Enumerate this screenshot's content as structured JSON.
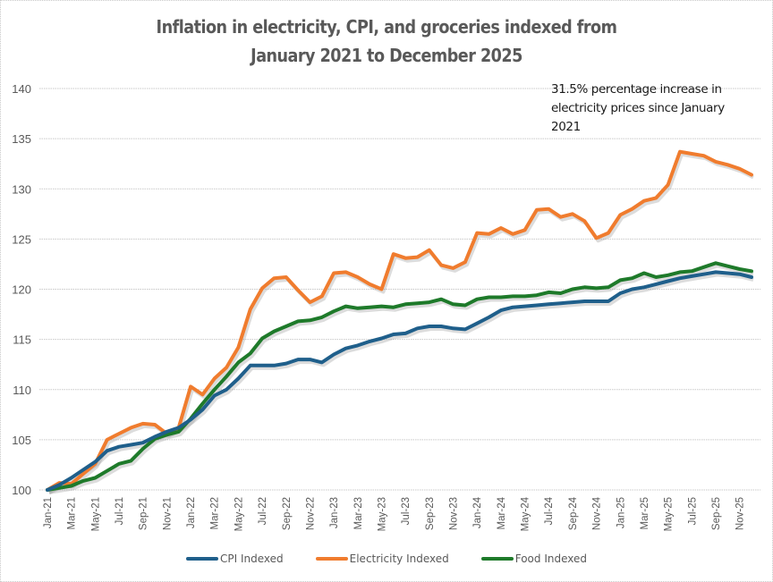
{
  "chart_data": {
    "type": "line",
    "title": "Inflation in electricity, CPI, and groceries indexed from January 2021 to December 2025",
    "title_lines": [
      "Inflation in electricity, CPI, and groceries indexed from",
      "January 2021 to December 2025"
    ],
    "annotation": "31.5% percentage increase in electricity prices since January 2021",
    "annotation_lines": [
      "31.5% percentage increase in",
      "electricity prices since January",
      "2021"
    ],
    "xlabel": "",
    "ylabel": "",
    "ylim": [
      100,
      140
    ],
    "yticks": [
      100,
      105,
      110,
      115,
      120,
      125,
      130,
      135,
      140
    ],
    "grid": true,
    "legend_position": "bottom",
    "x": [
      "Jan-21",
      "Feb-21",
      "Mar-21",
      "Apr-21",
      "May-21",
      "Jun-21",
      "Jul-21",
      "Aug-21",
      "Sep-21",
      "Oct-21",
      "Nov-21",
      "Dec-21",
      "Jan-22",
      "Feb-22",
      "Mar-22",
      "Apr-22",
      "May-22",
      "Jun-22",
      "Jul-22",
      "Aug-22",
      "Sep-22",
      "Oct-22",
      "Nov-22",
      "Dec-22",
      "Jan-23",
      "Feb-23",
      "Mar-23",
      "Apr-23",
      "May-23",
      "Jun-23",
      "Jul-23",
      "Aug-23",
      "Sep-23",
      "Oct-23",
      "Nov-23",
      "Dec-23",
      "Jan-24",
      "Feb-24",
      "Mar-24",
      "Apr-24",
      "May-24",
      "Jun-24",
      "Jul-24",
      "Aug-24",
      "Sep-24",
      "Oct-24",
      "Nov-24",
      "Dec-24",
      "Jan-25",
      "Feb-25",
      "Mar-25",
      "Apr-25",
      "May-25",
      "Jun-25",
      "Jul-25",
      "Aug-25",
      "Sep-25",
      "Oct-25",
      "Nov-25",
      "Dec-25"
    ],
    "xtick_labels": [
      "Jan-21",
      "Mar-21",
      "May-21",
      "Jul-21",
      "Sep-21",
      "Nov-21",
      "Jan-22",
      "Mar-22",
      "May-22",
      "Jul-22",
      "Sep-22",
      "Nov-22",
      "Jan-23",
      "Mar-23",
      "May-23",
      "Jul-23",
      "Sep-23",
      "Nov-23",
      "Jan-24",
      "Mar-24",
      "May-24",
      "Jul-24",
      "Sep-24",
      "Nov-24",
      "Jan-25",
      "Mar-25",
      "May-25",
      "Jul-25",
      "Sep-25",
      "Nov-25"
    ],
    "series": [
      {
        "name": "CPI Indexed",
        "color": "#1f5f8b",
        "values": [
          100,
          100.5,
          101.2,
          102.0,
          102.8,
          103.9,
          104.3,
          104.5,
          104.7,
          105.3,
          105.8,
          106.2,
          107.0,
          108.0,
          109.4,
          110.0,
          111.1,
          112.4,
          112.4,
          112.4,
          112.6,
          113.0,
          113.0,
          112.7,
          113.5,
          114.1,
          114.4,
          114.8,
          115.1,
          115.5,
          115.6,
          116.1,
          116.3,
          116.3,
          116.1,
          116.0,
          116.6,
          117.2,
          117.9,
          118.2,
          118.3,
          118.4,
          118.5,
          118.6,
          118.7,
          118.8,
          118.8,
          118.8,
          119.6,
          120.0,
          120.2,
          120.5,
          120.8,
          121.1,
          121.3,
          121.5,
          121.7,
          121.6,
          121.5,
          121.2
        ]
      },
      {
        "name": "Electricity Indexed",
        "color": "#f07c2e",
        "values": [
          100,
          100.7,
          100.6,
          101.6,
          102.6,
          105.0,
          105.6,
          106.2,
          106.6,
          106.5,
          105.6,
          106.2,
          110.3,
          109.5,
          111.1,
          112.2,
          114.2,
          118.0,
          120.1,
          121.1,
          121.2,
          119.9,
          118.7,
          119.3,
          121.6,
          121.7,
          121.2,
          120.5,
          120.0,
          123.5,
          123.1,
          123.2,
          123.9,
          122.4,
          122.1,
          122.7,
          125.6,
          125.5,
          126.1,
          125.5,
          125.9,
          127.9,
          128.0,
          127.2,
          127.5,
          126.8,
          125.1,
          125.6,
          127.4,
          128.0,
          128.8,
          129.1,
          130.4,
          133.7,
          133.5,
          133.3,
          132.7,
          132.4,
          132.0,
          131.4
        ]
      },
      {
        "name": "Food Indexed",
        "color": "#1e7a2a",
        "values": [
          100,
          100.2,
          100.4,
          100.9,
          101.2,
          101.9,
          102.6,
          102.9,
          104.1,
          105.1,
          105.5,
          105.8,
          107.1,
          108.6,
          110.0,
          111.3,
          112.7,
          113.6,
          115.1,
          115.8,
          116.3,
          116.8,
          116.9,
          117.2,
          117.8,
          118.3,
          118.1,
          118.2,
          118.3,
          118.2,
          118.5,
          118.6,
          118.7,
          119.0,
          118.5,
          118.4,
          119.0,
          119.2,
          119.2,
          119.3,
          119.3,
          119.4,
          119.7,
          119.6,
          120.0,
          120.2,
          120.1,
          120.2,
          120.9,
          121.1,
          121.6,
          121.2,
          121.4,
          121.7,
          121.8,
          122.2,
          122.6,
          122.3,
          122.0,
          121.8
        ]
      }
    ]
  }
}
